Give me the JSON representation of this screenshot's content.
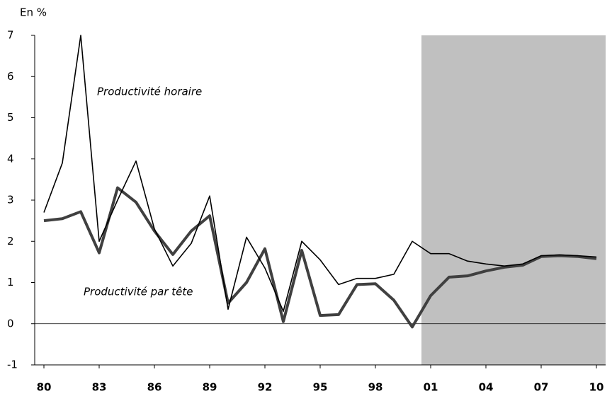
{
  "chart_data": {
    "type": "line",
    "y_label": "En %",
    "x": [
      1980,
      1981,
      1982,
      1983,
      1984,
      1985,
      1986,
      1987,
      1988,
      1989,
      1990,
      1991,
      1992,
      1993,
      1994,
      1995,
      1996,
      1997,
      1998,
      1999,
      2000,
      2001,
      2002,
      2003,
      2004,
      2005,
      2006,
      2007,
      2008,
      2009,
      2010
    ],
    "series": [
      {
        "name": "Productivité horaire",
        "color": "#000000",
        "values": [
          2.7,
          3.9,
          7.0,
          2.0,
          3.0,
          3.95,
          2.3,
          1.4,
          1.95,
          3.1,
          0.35,
          2.1,
          1.35,
          0.3,
          2.0,
          1.55,
          0.95,
          1.1,
          1.1,
          1.2,
          2.0,
          1.7,
          1.7,
          1.52,
          1.45,
          1.4,
          1.45,
          1.65,
          1.67,
          1.65,
          1.62
        ]
      },
      {
        "name": "Productivité par tête",
        "color": "#404040",
        "values": [
          2.5,
          2.55,
          2.72,
          1.72,
          3.3,
          2.95,
          2.25,
          1.68,
          2.25,
          2.62,
          0.5,
          1.0,
          1.82,
          0.05,
          1.78,
          0.2,
          0.22,
          0.95,
          0.97,
          0.57,
          -0.08,
          0.68,
          1.13,
          1.16,
          1.28,
          1.37,
          1.42,
          1.63,
          1.65,
          1.63,
          1.58
        ]
      }
    ],
    "shaded_region": [
      2000.5,
      2010.5
    ],
    "shade_color": "#c0c0c0",
    "xlim": [
      1979.5,
      2010.5
    ],
    "xticks": [
      {
        "value": 1980,
        "label": "80"
      },
      {
        "value": 1983,
        "label": "83"
      },
      {
        "value": 1986,
        "label": "86"
      },
      {
        "value": 1989,
        "label": "89"
      },
      {
        "value": 1992,
        "label": "92"
      },
      {
        "value": 1995,
        "label": "95"
      },
      {
        "value": 1998,
        "label": "98"
      },
      {
        "value": 2001,
        "label": "01"
      },
      {
        "value": 2004,
        "label": "04"
      },
      {
        "value": 2007,
        "label": "07"
      },
      {
        "value": 2010,
        "label": "10"
      }
    ],
    "ylim": [
      -1,
      7
    ],
    "yticks": [
      -1,
      0,
      1,
      2,
      3,
      4,
      5,
      6,
      7
    ]
  }
}
